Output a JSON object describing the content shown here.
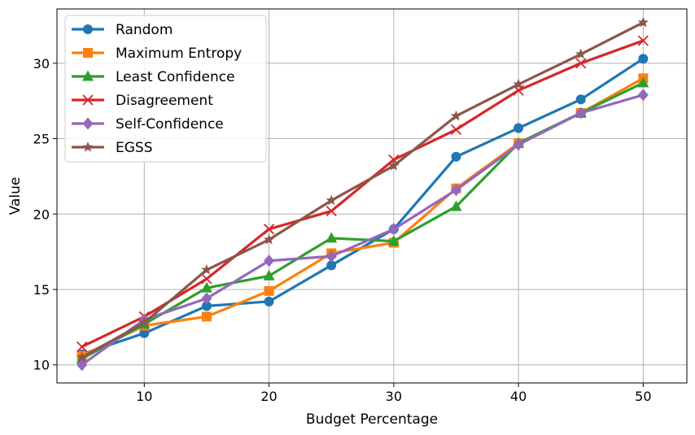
{
  "chart_data": {
    "type": "line",
    "title": "",
    "xlabel": "Budget Percentage",
    "ylabel": "Value",
    "x": [
      5,
      10,
      15,
      20,
      25,
      30,
      35,
      40,
      45,
      50
    ],
    "xlim": [
      3,
      53.5
    ],
    "ylim": [
      8.8,
      33.6
    ],
    "xticks": [
      10,
      20,
      30,
      40,
      50
    ],
    "yticks": [
      10,
      15,
      20,
      25,
      30
    ],
    "grid": true,
    "legend_position": "top-left",
    "series": [
      {
        "name": "Random",
        "color": "#1f77b4",
        "marker": "circle",
        "values": [
          10.7,
          12.1,
          13.9,
          14.2,
          16.6,
          19.0,
          23.8,
          25.7,
          27.6,
          30.3
        ]
      },
      {
        "name": "Maximum Entropy",
        "color": "#ff7f0e",
        "marker": "square",
        "values": [
          10.6,
          12.6,
          13.2,
          14.9,
          17.4,
          18.1,
          21.7,
          24.7,
          26.7,
          29.0
        ]
      },
      {
        "name": "Least Confidence",
        "color": "#2ca02c",
        "marker": "triangle",
        "values": [
          10.4,
          12.7,
          15.1,
          15.9,
          18.4,
          18.2,
          20.5,
          24.7,
          26.7,
          28.7
        ]
      },
      {
        "name": "Disagreement",
        "color": "#d62728",
        "marker": "x",
        "values": [
          11.2,
          13.2,
          15.7,
          19.0,
          20.2,
          23.6,
          25.6,
          28.2,
          30.0,
          31.5
        ]
      },
      {
        "name": "Self-Confidence",
        "color": "#9467bd",
        "marker": "diamond",
        "values": [
          10.0,
          13.0,
          14.4,
          16.9,
          17.2,
          19.0,
          21.6,
          24.6,
          26.7,
          27.9
        ]
      },
      {
        "name": "EGSS",
        "color": "#8c564b",
        "marker": "star",
        "values": [
          10.5,
          12.8,
          16.3,
          18.3,
          20.9,
          23.2,
          26.5,
          28.6,
          30.6,
          32.7
        ]
      }
    ]
  }
}
